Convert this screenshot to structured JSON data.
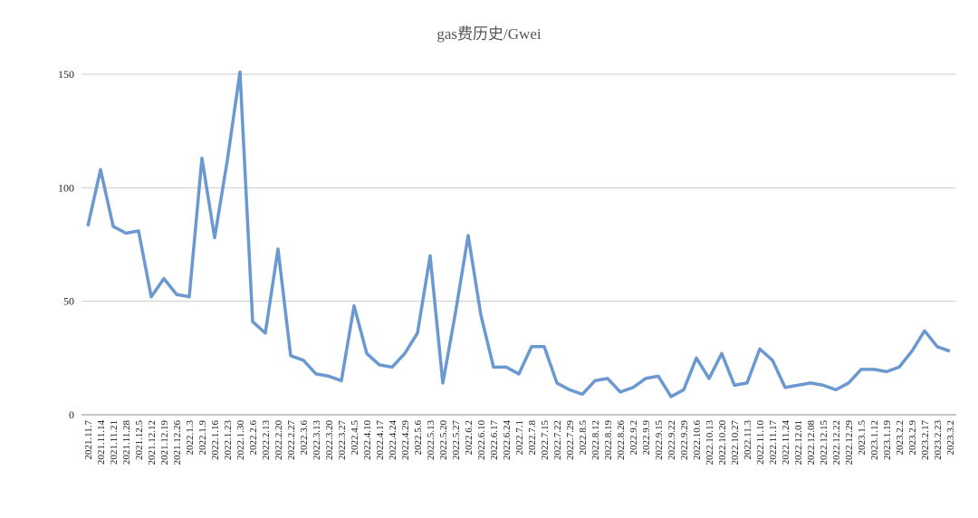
{
  "chart_data": {
    "type": "line",
    "title": "gas费历史/Gwei",
    "categories": [
      "2021.11.7",
      "2021.11.14",
      "2021.11.21",
      "2021.11.28",
      "2021.12.5",
      "2021.12.12",
      "2021.12.19",
      "2021.12.26",
      "2022.1.3",
      "2022.1.9",
      "2022.1.16",
      "2022.1.23",
      "2022.1.30",
      "2022.2.6",
      "2022.2.13",
      "2022.2.20",
      "2022.2.27",
      "2022.3.6",
      "2022.3.13",
      "2022.3.20",
      "2022.3.27",
      "2022.4.5",
      "2022.4.10",
      "2022.4.17",
      "2022.4.24",
      "2022.4.29",
      "2022.5.6",
      "2022.5.13",
      "2022.5.20",
      "2022.5.27",
      "2022.6.2",
      "2022.6.10",
      "2022.6.17",
      "2022.6.24",
      "2022.7.1",
      "2022.7.8",
      "2022.7.15",
      "2022.7.22",
      "2022.7.29",
      "2022.8.5",
      "2022.8.12",
      "2022.8.19",
      "2022.8.26",
      "2022.9.2",
      "2022.9.9",
      "2022.9.15",
      "2022.9.22",
      "2022.9.29",
      "2022.10.6",
      "2022.10.13",
      "2022.10.20",
      "2022.10.27",
      "2022.11.3",
      "2022.11.10",
      "2022.11.17",
      "2022.11.24",
      "2022.12.01",
      "2022.12.08",
      "2022.12.15",
      "2022.12.22",
      "2022.12.29",
      "2023.1.5",
      "2023.1.12",
      "2023.1.19",
      "2023.2.2",
      "2023.2.9",
      "2023.2.17",
      "2023.2.23",
      "2023.3.2"
    ],
    "values": [
      83,
      108,
      83,
      80,
      81,
      52,
      60,
      53,
      52,
      113,
      78,
      112,
      151,
      41,
      36,
      73,
      26,
      24,
      18,
      17,
      15,
      48,
      27,
      22,
      21,
      27,
      36,
      70,
      14,
      45,
      79,
      44,
      21,
      21,
      18,
      30,
      30,
      14,
      11,
      9,
      15,
      16,
      10,
      12,
      16,
      17,
      8,
      11,
      25,
      16,
      27,
      13,
      14,
      29,
      24,
      12,
      13,
      14,
      13,
      11,
      14,
      20,
      20,
      19,
      21,
      28,
      37,
      30,
      28
    ],
    "color": "#6a98d0",
    "ylim": [
      0,
      150
    ],
    "yticks": [
      0,
      50,
      100,
      150
    ],
    "grid": true
  }
}
